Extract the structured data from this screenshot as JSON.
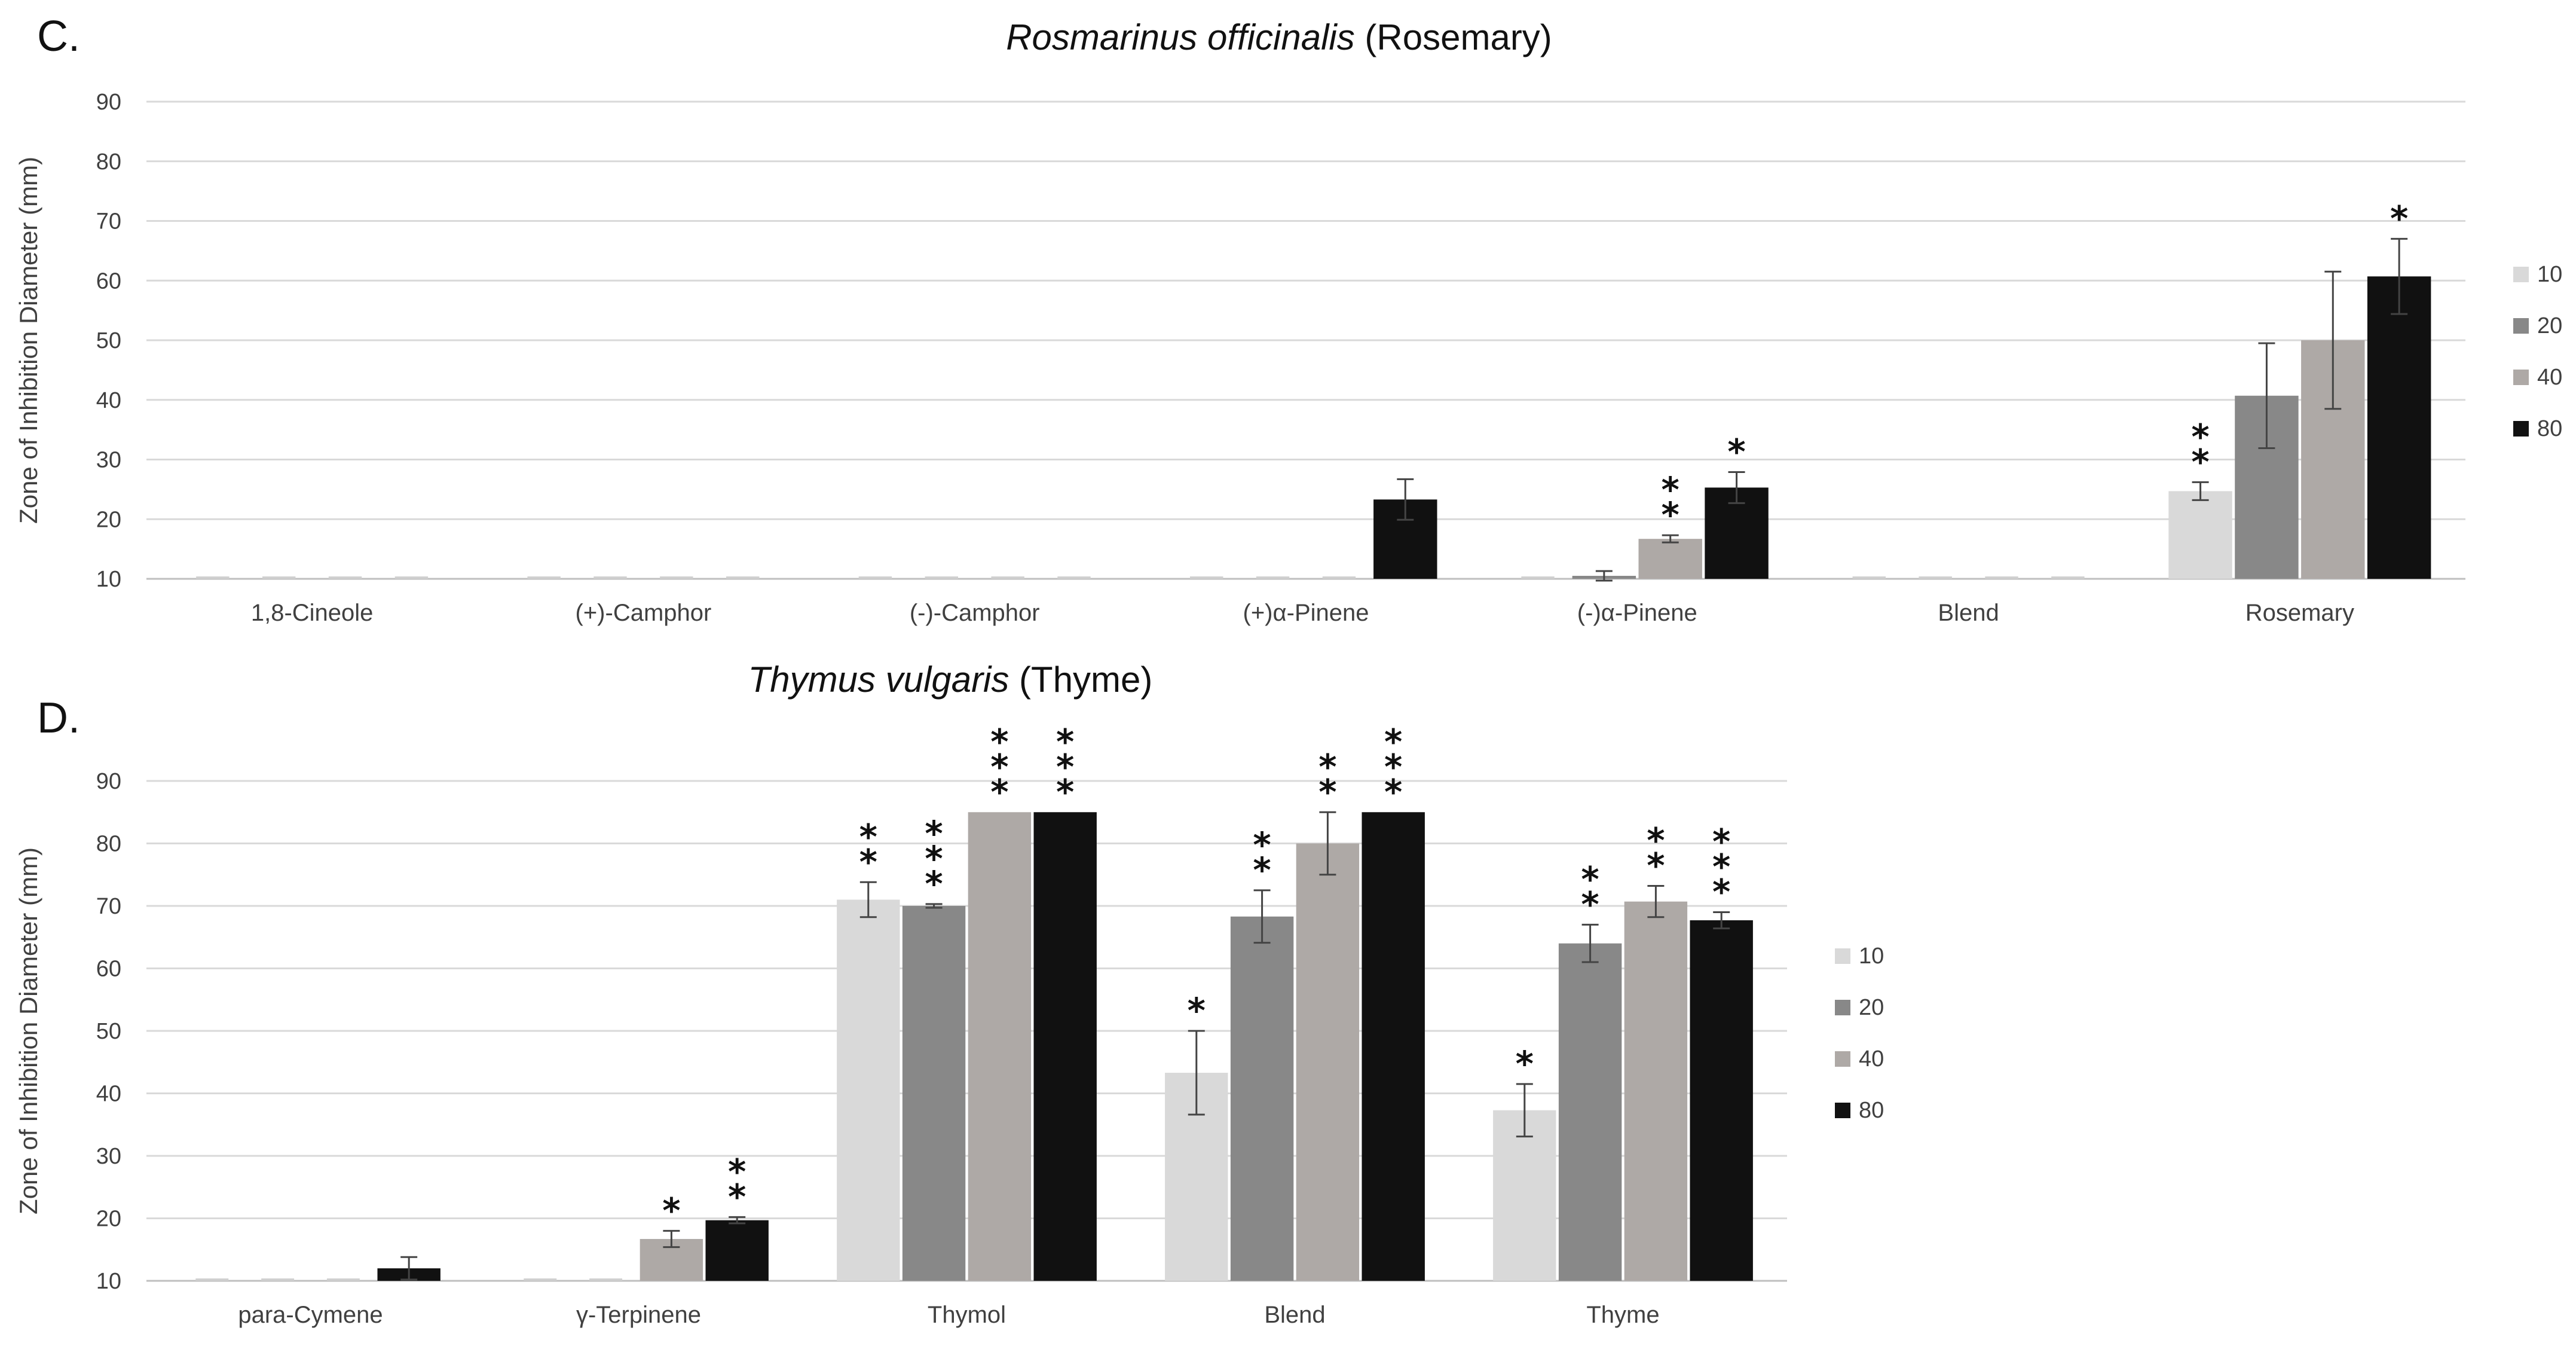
{
  "chart_data": [
    {
      "type": "bar",
      "panel": "C.",
      "title_italic": "Rosmarinus officinalis",
      "title_plain": " (Rosemary)",
      "ylabel": "Zone of Inhibition Diameter (mm)",
      "ylim": [
        10,
        90
      ],
      "yticks": [
        10,
        20,
        30,
        40,
        50,
        60,
        70,
        80,
        90
      ],
      "grid": true,
      "legend_position": "right",
      "categories": [
        "1,8-Cineole",
        "(+)-Camphor",
        "(-)-Camphor",
        "(+)α-Pinene",
        "(-)α-Pinene",
        "Blend",
        "Rosemary"
      ],
      "series": [
        {
          "name": "10",
          "color": "#d9d9d9",
          "values": [
            10,
            10,
            10,
            10,
            10,
            10,
            24.7
          ],
          "errors": [
            0,
            0,
            0,
            0,
            0,
            0,
            1.5
          ],
          "stars": [
            0,
            0,
            0,
            0,
            0,
            0,
            2
          ]
        },
        {
          "name": "20",
          "color": "#888888",
          "values": [
            10,
            10,
            10,
            10,
            10.5,
            10,
            40.7
          ],
          "errors": [
            0,
            0,
            0,
            0,
            0.8,
            0,
            8.8
          ],
          "stars": [
            0,
            0,
            0,
            0,
            0,
            0,
            0
          ]
        },
        {
          "name": "40",
          "color": "#aea9a6",
          "values": [
            10,
            10,
            10,
            10,
            16.7,
            10,
            50
          ],
          "errors": [
            0,
            0,
            0,
            0,
            0.6,
            0,
            11.5
          ],
          "stars": [
            0,
            0,
            0,
            0,
            2,
            0,
            0
          ]
        },
        {
          "name": "80",
          "color": "#111111",
          "values": [
            10,
            10,
            10,
            23.3,
            25.3,
            10,
            60.7
          ],
          "errors": [
            0,
            0,
            0,
            3.4,
            2.6,
            0,
            6.3
          ],
          "stars": [
            0,
            0,
            0,
            0,
            1,
            0,
            1
          ]
        }
      ]
    },
    {
      "type": "bar",
      "panel": "D.",
      "title_italic": "Thymus vulgaris",
      "title_plain": " (Thyme)",
      "ylabel": "Zone of Inhibition Diameter (mm)",
      "ylim": [
        10,
        90
      ],
      "yticks": [
        10,
        20,
        30,
        40,
        50,
        60,
        70,
        80,
        90
      ],
      "grid": true,
      "legend_position": "right",
      "categories": [
        "para-Cymene",
        "γ-Terpinene",
        "Thymol",
        "Blend",
        "Thyme"
      ],
      "series": [
        {
          "name": "10",
          "color": "#d9d9d9",
          "values": [
            10,
            10,
            71,
            43.3,
            37.3
          ],
          "errors": [
            0,
            0,
            2.8,
            6.7,
            4.2
          ],
          "stars": [
            0,
            0,
            2,
            1,
            1
          ]
        },
        {
          "name": "20",
          "color": "#888888",
          "values": [
            10,
            10,
            70,
            68.3,
            64
          ],
          "errors": [
            0,
            0,
            0.3,
            4.2,
            3.0
          ],
          "stars": [
            0,
            0,
            3,
            2,
            2
          ]
        },
        {
          "name": "40",
          "color": "#aea9a6",
          "values": [
            10,
            16.7,
            85,
            80,
            70.7
          ],
          "errors": [
            0,
            1.3,
            0,
            5,
            2.5
          ],
          "stars": [
            0,
            1,
            3,
            2,
            2
          ]
        },
        {
          "name": "80",
          "color": "#111111",
          "values": [
            12,
            19.7,
            85,
            85,
            67.7
          ],
          "errors": [
            1.8,
            0.5,
            0,
            0,
            1.3
          ],
          "stars": [
            0,
            2,
            3,
            3,
            3
          ]
        }
      ]
    }
  ]
}
